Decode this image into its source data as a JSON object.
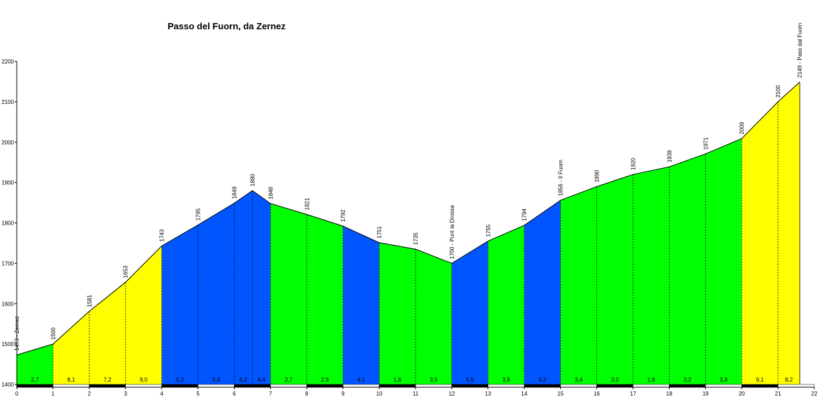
{
  "chart_data": {
    "type": "area",
    "title": "Passo del Fuorn, da Zernez",
    "xlabel": "",
    "ylabel": "",
    "xlim": [
      0,
      22
    ],
    "ylim": [
      1400,
      2200
    ],
    "x_ticks": [
      "0",
      "1",
      "2",
      "3",
      "4",
      "5",
      "6",
      "7",
      "8",
      "9",
      "10",
      "11",
      "12",
      "13",
      "14",
      "15",
      "16",
      "17",
      "18",
      "19",
      "20",
      "21",
      "22"
    ],
    "y_ticks": [
      "1400",
      "1500",
      "1600",
      "1700",
      "1800",
      "1900",
      "2000",
      "2100",
      "2200"
    ],
    "colors": {
      "yellow": "#ffff00",
      "blue": "#0055ff",
      "green": "#00ff00"
    },
    "profile": [
      {
        "x": 0,
        "y": 1473,
        "label": "1473 - Zernez"
      },
      {
        "x": 1,
        "y": 1500,
        "label": "1500"
      },
      {
        "x": 2,
        "y": 1581,
        "label": "1581"
      },
      {
        "x": 3,
        "y": 1653,
        "label": "1653"
      },
      {
        "x": 4,
        "y": 1743,
        "label": "1743"
      },
      {
        "x": 5,
        "y": 1795,
        "label": "1795"
      },
      {
        "x": 6,
        "y": 1849,
        "label": "1849"
      },
      {
        "x": 6.5,
        "y": 1880,
        "label": "1880"
      },
      {
        "x": 7,
        "y": 1848,
        "label": "1848"
      },
      {
        "x": 8,
        "y": 1821,
        "label": "1821"
      },
      {
        "x": 9,
        "y": 1792,
        "label": "1792"
      },
      {
        "x": 10,
        "y": 1751,
        "label": "1751"
      },
      {
        "x": 11,
        "y": 1735,
        "label": "1735"
      },
      {
        "x": 12,
        "y": 1700,
        "label": "1700 - Punt la Drossa"
      },
      {
        "x": 13,
        "y": 1755,
        "label": "1755"
      },
      {
        "x": 14,
        "y": 1794,
        "label": "1794"
      },
      {
        "x": 15,
        "y": 1856,
        "label": "1856 - Il Fuorn"
      },
      {
        "x": 16,
        "y": 1890,
        "label": "1890"
      },
      {
        "x": 17,
        "y": 1920,
        "label": "1920"
      },
      {
        "x": 18,
        "y": 1939,
        "label": "1939"
      },
      {
        "x": 19,
        "y": 1971,
        "label": "1971"
      },
      {
        "x": 20,
        "y": 2009,
        "label": "2009"
      },
      {
        "x": 21,
        "y": 2100,
        "label": "2100"
      },
      {
        "x": 21.6,
        "y": 2149,
        "label": "2149 - Pass dal Fuorn"
      }
    ],
    "segments": [
      {
        "gradient": "2,7",
        "color": "green"
      },
      {
        "gradient": "8,1",
        "color": "yellow"
      },
      {
        "gradient": "7,2",
        "color": "yellow"
      },
      {
        "gradient": "9,0",
        "color": "yellow"
      },
      {
        "gradient": "5,2",
        "color": "blue"
      },
      {
        "gradient": "5,4",
        "color": "blue"
      },
      {
        "gradient": "6,2",
        "color": "blue"
      },
      {
        "gradient": "6,4",
        "color": "blue"
      },
      {
        "gradient": "2,7",
        "color": "green"
      },
      {
        "gradient": "2,9",
        "color": "green"
      },
      {
        "gradient": "4,1",
        "color": "blue"
      },
      {
        "gradient": "1,6",
        "color": "green"
      },
      {
        "gradient": "3,5",
        "color": "green"
      },
      {
        "gradient": "5,5",
        "color": "blue"
      },
      {
        "gradient": "3,9",
        "color": "green"
      },
      {
        "gradient": "6,2",
        "color": "blue"
      },
      {
        "gradient": "3,4",
        "color": "green"
      },
      {
        "gradient": "3,0",
        "color": "green"
      },
      {
        "gradient": "1,9",
        "color": "green"
      },
      {
        "gradient": "3,2",
        "color": "green"
      },
      {
        "gradient": "3,8",
        "color": "green"
      },
      {
        "gradient": "9,1",
        "color": "yellow"
      },
      {
        "gradient": "8,2",
        "color": "yellow"
      }
    ]
  }
}
